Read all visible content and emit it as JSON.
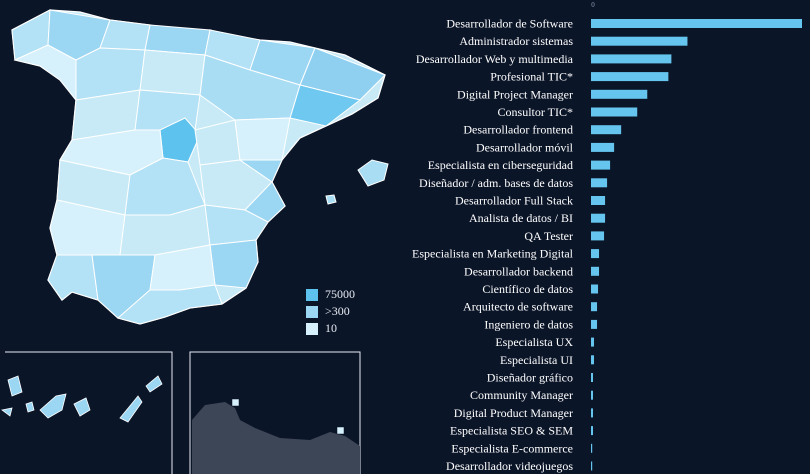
{
  "colors": {
    "background": "#0b1528",
    "bar": "#65c5ee",
    "legend_high": "#5ec2ee",
    "legend_mid": "#9bd6f3",
    "legend_low": "#d6f1fb",
    "region_border": "#ffffff"
  },
  "map": {
    "legend": [
      {
        "label": "75000",
        "color": "#5ec2ee"
      },
      {
        "label": ">300",
        "color": "#9bd6f3"
      },
      {
        "label": "10",
        "color": "#d6f1fb"
      }
    ]
  },
  "chart_data": {
    "type": "bar",
    "orientation": "horizontal",
    "x_tick_labels": [
      "0"
    ],
    "categories": [
      "Desarrollador de Software",
      "Administrador sistemas",
      "Desarrollador Web y multimedia",
      "Profesional TIC*",
      "Digital Project Manager",
      "Consultor TIC*",
      "Desarrollador frontend",
      "Desarrollador móvil",
      "Especialista en ciberseguridad",
      "Diseñador / adm. bases de datos",
      "Desarrollador Full Stack",
      "Analista de datos / BI",
      "QA Tester",
      "Especialista en Marketing Digital",
      "Desarrollador backend",
      "Científico de datos",
      "Arquitecto de software",
      "Ingeniero de datos",
      "Especialista UX",
      "Especialista UI",
      "Diseñador gráfico",
      "Community Manager",
      "Digital Product Manager",
      "Especialista SEO & SEM",
      "Especialista E-commerce",
      "Desarrollador videojuegos"
    ],
    "values": [
      210,
      96,
      80,
      77,
      56,
      46,
      30,
      23,
      19,
      16,
      14,
      14,
      13,
      8,
      8,
      7,
      6,
      6,
      3,
      3,
      2,
      2,
      2,
      2,
      1,
      1
    ],
    "xlim": [
      0,
      210
    ],
    "grid": false,
    "legend": "none"
  }
}
